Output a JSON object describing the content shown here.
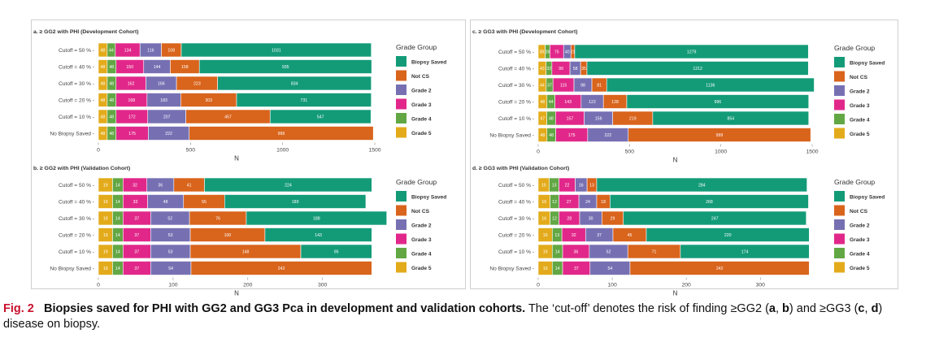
{
  "colors": {
    "Biopsy Saved": "#139b78",
    "Not CS": "#d9641c",
    "Grade 2": "#7670b3",
    "Grade 3": "#e1288a",
    "Grade 4": "#62a744",
    "Grade 5": "#e3ab1b"
  },
  "legend": {
    "title": "Grade Group",
    "items": [
      "Biopsy Saved",
      "Not CS",
      "Grade 2",
      "Grade 3",
      "Grade 4",
      "Grade 5"
    ]
  },
  "chart_data": [
    {
      "id": "a",
      "type": "bar",
      "orientation": "horizontal",
      "stacked": true,
      "title": "a. ≥ GG2 with PHI (Development Cohort)",
      "xlabel": "N",
      "xlim": [
        0,
        1500
      ],
      "xticks": [
        0,
        500,
        1000,
        1500
      ],
      "stack_order": [
        "Grade 5",
        "Grade 4",
        "Grade 3",
        "Grade 2",
        "Not CS",
        "Biopsy Saved"
      ],
      "categories": [
        "Cutoff = 50 %",
        "Cutoff = 40 %",
        "Cutoff = 30 %",
        "Cutoff = 20 %",
        "Cutoff = 10 %",
        "No Biopsy Saved"
      ],
      "series": [
        {
          "name": "Grade 5",
          "values": [
            48,
            48,
            48,
            48,
            48,
            48
          ]
        },
        {
          "name": "Grade 4",
          "values": [
            44,
            48,
            48,
            48,
            48,
            48
          ]
        },
        {
          "name": "Grade 3",
          "values": [
            134,
            150,
            162,
            168,
            172,
            175
          ]
        },
        {
          "name": "Grade 2",
          "values": [
            116,
            144,
            166,
            183,
            207,
            222
          ]
        },
        {
          "name": "Not CS",
          "values": [
            108,
            158,
            223,
            303,
            457,
            999
          ]
        },
        {
          "name": "Biopsy Saved",
          "values": [
            1031,
            935,
            834,
            731,
            547,
            0
          ]
        }
      ]
    },
    {
      "id": "b",
      "type": "bar",
      "orientation": "horizontal",
      "stacked": true,
      "title": "b. ≥ GG2 with PHI (Validation Cohort)",
      "xlabel": "N",
      "xlim": [
        0,
        370
      ],
      "xticks": [
        0,
        100,
        200,
        300
      ],
      "stack_order": [
        "Grade 5",
        "Grade 4",
        "Grade 3",
        "Grade 2",
        "Not CS",
        "Biopsy Saved"
      ],
      "categories": [
        "Cutoff = 50 %",
        "Cutoff = 40 %",
        "Cutoff = 30 %",
        "Cutoff = 20 %",
        "Cutoff = 10 %",
        "No Biopsy Saved"
      ],
      "series": [
        {
          "name": "Grade 5",
          "values": [
            19,
            19,
            19,
            19,
            19,
            19
          ]
        },
        {
          "name": "Grade 4",
          "values": [
            14,
            14,
            14,
            14,
            14,
            14
          ]
        },
        {
          "name": "Grade 3",
          "values": [
            32,
            33,
            37,
            37,
            37,
            37
          ]
        },
        {
          "name": "Grade 2",
          "values": [
            36,
            48,
            52,
            53,
            53,
            54
          ]
        },
        {
          "name": "Not CS",
          "values": [
            41,
            55,
            76,
            100,
            148,
            242
          ]
        },
        {
          "name": "Biopsy Saved",
          "values": [
            224,
            189,
            188,
            143,
            95,
            0
          ]
        }
      ]
    },
    {
      "id": "c",
      "type": "bar",
      "orientation": "horizontal",
      "stacked": true,
      "title": "c. ≥ GG3 with PHI (Development Cohort)",
      "xlabel": "N",
      "xlim": [
        0,
        1500
      ],
      "xticks": [
        0,
        500,
        1000,
        1500
      ],
      "stack_order": [
        "Grade 5",
        "Grade 4",
        "Grade 3",
        "Grade 2",
        "Not CS",
        "Biopsy Saved"
      ],
      "categories": [
        "Cutoff = 50 %",
        "Cutoff = 40 %",
        "Cutoff = 30 %",
        "Cutoff = 20 %",
        "Cutoff = 10 %",
        "No Biopsy Saved"
      ],
      "series": [
        {
          "name": "Grade 5",
          "values": [
            38,
            43,
            44,
            48,
            47,
            48
          ]
        },
        {
          "name": "Grade 4",
          "values": [
            26,
            32,
            37,
            44,
            48,
            48
          ]
        },
        {
          "name": "Grade 3",
          "values": [
            75,
            99,
            115,
            143,
            157,
            175
          ]
        },
        {
          "name": "Grade 2",
          "values": [
            40,
            58,
            98,
            122,
            156,
            222
          ]
        },
        {
          "name": "Not CS",
          "values": [
            21,
            35,
            81,
            128,
            219,
            999
          ]
        },
        {
          "name": "Biopsy Saved",
          "values": [
            1279,
            1212,
            1136,
            996,
            854,
            0
          ]
        }
      ]
    },
    {
      "id": "d",
      "type": "bar",
      "orientation": "horizontal",
      "stacked": true,
      "title": "d. ≥ GG3 with PHI (Validation Cohort)",
      "xlabel": "N",
      "xlim": [
        0,
        370
      ],
      "xticks": [
        0,
        100,
        200,
        300
      ],
      "stack_order": [
        "Grade 5",
        "Grade 4",
        "Grade 3",
        "Grade 2",
        "Not CS",
        "Biopsy Saved"
      ],
      "categories": [
        "Cutoff = 50 %",
        "Cutoff = 40 %",
        "Cutoff = 30 %",
        "Cutoff = 20 %",
        "Cutoff = 10 %",
        "No Biopsy Saved"
      ],
      "series": [
        {
          "name": "Grade 5",
          "values": [
            15,
            16,
            16,
            19,
            19,
            19
          ]
        },
        {
          "name": "Grade 4",
          "values": [
            13,
            12,
            12,
            13,
            14,
            14
          ]
        },
        {
          "name": "Grade 3",
          "values": [
            22,
            27,
            28,
            32,
            36,
            37
          ]
        },
        {
          "name": "Grade 2",
          "values": [
            16,
            24,
            30,
            37,
            52,
            54
          ]
        },
        {
          "name": "Not CS",
          "values": [
            13,
            18,
            29,
            45,
            71,
            242
          ]
        },
        {
          "name": "Biopsy Saved",
          "values": [
            284,
            268,
            247,
            220,
            174,
            0
          ]
        }
      ]
    }
  ],
  "caption": {
    "label": "Fig. 2",
    "title": "Biopsies saved for PHI with GG2 and GG3 Pca in development and validation cohorts.",
    "text_1": " The ‘cut-off’ denotes the risk of finding ≥GG2 (",
    "a": "a",
    "comma": ", ",
    "b": "b",
    "text_2": ") and ≥GG3 (",
    "c": "c",
    "comma2": ", ",
    "d": "d",
    "text_3": ") disease on biopsy."
  }
}
